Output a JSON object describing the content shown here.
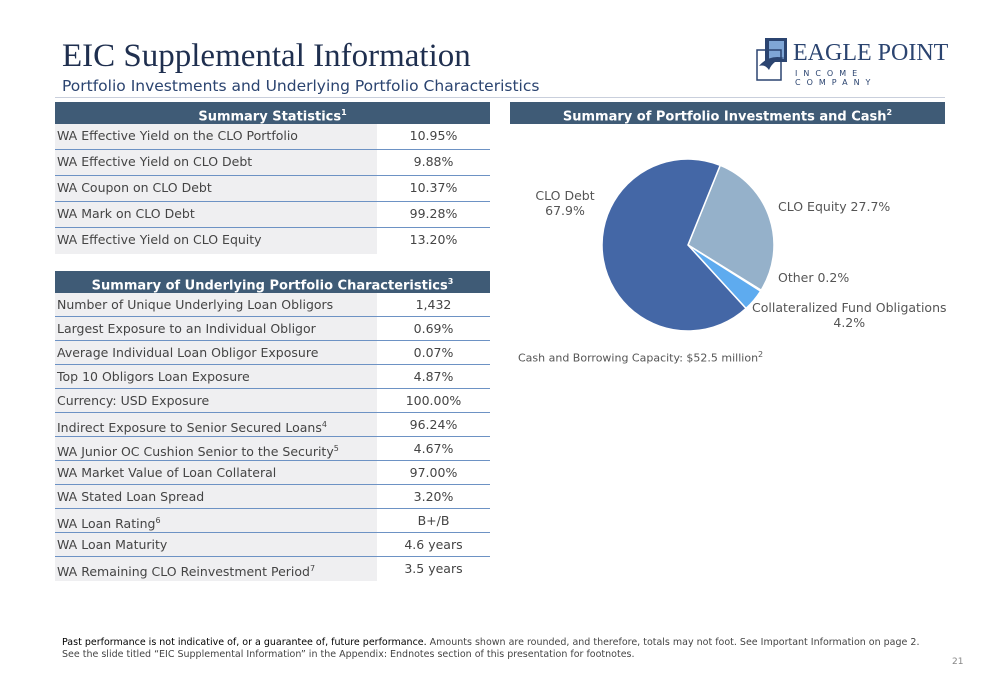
{
  "header": {
    "title": "EIC Supplemental Information",
    "subtitle": "Portfolio Investments and Underlying Portfolio Characteristics"
  },
  "logo": {
    "name": "EAGLE POINT",
    "sub": "INCOME COMPANY"
  },
  "summary_statistics": {
    "title": "Summary Statistics",
    "sup": "1",
    "rows": [
      {
        "label": "WA Effective Yield on the CLO Portfolio",
        "value": "10.95%"
      },
      {
        "label": "WA Effective Yield on CLO Debt",
        "value": "9.88%"
      },
      {
        "label": "WA Coupon on CLO Debt",
        "value": "10.37%"
      },
      {
        "label": "WA Mark on CLO Debt",
        "value": "99.28%"
      },
      {
        "label": "WA Effective Yield on CLO Equity",
        "value": "13.20%"
      }
    ]
  },
  "underlying": {
    "title": "Summary of Underlying Portfolio Characteristics",
    "sup": "3",
    "rows": [
      {
        "label": "Number of Unique Underlying Loan Obligors",
        "sup": "",
        "value": "1,432"
      },
      {
        "label": "Largest Exposure to an Individual Obligor",
        "sup": "",
        "value": "0.69%"
      },
      {
        "label": "Average Individual Loan Obligor Exposure",
        "sup": "",
        "value": "0.07%"
      },
      {
        "label": "Top 10 Obligors Loan Exposure",
        "sup": "",
        "value": "4.87%"
      },
      {
        "label": "Currency: USD Exposure",
        "sup": "",
        "value": "100.00%"
      },
      {
        "label": "Indirect Exposure to Senior Secured Loans",
        "sup": "4",
        "value": "96.24%"
      },
      {
        "label": "WA Junior OC Cushion Senior to the Security",
        "sup": "5",
        "value": "4.67%"
      },
      {
        "label": "WA Market Value of Loan Collateral",
        "sup": "",
        "value": "97.00%"
      },
      {
        "label": "WA Stated Loan Spread",
        "sup": "",
        "value": "3.20%"
      },
      {
        "label": "WA Loan Rating",
        "sup": "6",
        "value": "B+/B"
      },
      {
        "label": "WA Loan Maturity",
        "sup": "",
        "value": "4.6 years"
      },
      {
        "label": "WA Remaining CLO Reinvestment Period",
        "sup": "7",
        "value": "3.5 years"
      }
    ]
  },
  "portfolio": {
    "title": "Summary of Portfolio Investments and Cash",
    "sup": "2",
    "note": "Cash and Borrowing Capacity: $52.5 million",
    "note_sup": "2"
  },
  "chart_data": {
    "type": "pie",
    "slices": [
      {
        "label": "CLO Equity 27.7%",
        "name": "CLO Equity",
        "value": 27.7,
        "color": "#95b1ca"
      },
      {
        "label": "Other 0.2%",
        "name": "Other",
        "value": 0.2,
        "color": "#8fb6e0"
      },
      {
        "label": "Collateralized Fund Obligations 4.2%",
        "name": "Collateralized Fund Obligations",
        "value": 4.2,
        "color": "#5eabef"
      },
      {
        "label": "CLO Debt 67.9%",
        "name": "CLO Debt",
        "value": 67.9,
        "color": "#4467a6"
      }
    ]
  },
  "labels": {
    "debt1": "CLO Debt",
    "debt2": "67.9%",
    "equity": "CLO Equity 27.7%",
    "other": "Other 0.2%",
    "cfo1": "Collateralized Fund Obligations",
    "cfo2": "4.2%"
  },
  "footer": {
    "bold": "Past performance is not indicative of, or a guarantee of, future performance.",
    "line1": " Amounts shown are rounded, and therefore, totals may not foot. See Important Information on page 2.",
    "line2": "See the slide titled “EIC Supplemental Information” in the Appendix: Endnotes section of this presentation for footnotes."
  },
  "page_number": "21"
}
